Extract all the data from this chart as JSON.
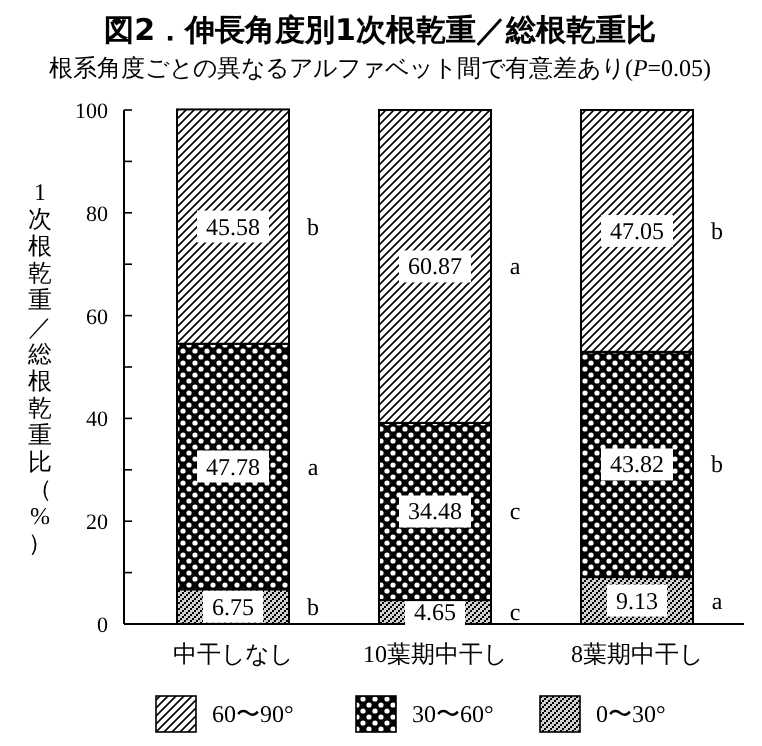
{
  "chart_data": {
    "type": "bar",
    "stacked": true,
    "title": "図2．伸長角度別1次根乾重／総根乾重比",
    "subtitle": "根系角度ごとの異なるアルファベット間で有意差あり(*P*=0.05)",
    "ylabel": "1次根乾重／総根乾重比（%）",
    "categories": [
      "中干しなし",
      "10葉期中干し",
      "8葉期中干し"
    ],
    "series": [
      {
        "name": "0〜30°",
        "color": "#000000",
        "values": [
          6.75,
          4.65,
          9.13
        ]
      },
      {
        "name": "30〜60°",
        "color": "#000000",
        "values": [
          47.78,
          34.48,
          43.82
        ]
      },
      {
        "name": "60〜90°",
        "color": "#000000",
        "values": [
          45.58,
          60.87,
          47.05
        ]
      }
    ],
    "ylim": [
      0,
      100
    ],
    "yticks": [
      0,
      {
        "value": 10,
        "label": null
      },
      20,
      {
        "value": 30,
        "label": null
      },
      40,
      {
        "value": 50,
        "label": null
      },
      60,
      {
        "value": 70,
        "label": null
      },
      80,
      {
        "value": 90,
        "label": null
      },
      100
    ],
    "data_labels": true,
    "legend": "bottom",
    "annotations": [
      "b",
      "a",
      "b",
      "c",
      "c",
      "a",
      "a",
      "b",
      "b"
    ]
  }
}
